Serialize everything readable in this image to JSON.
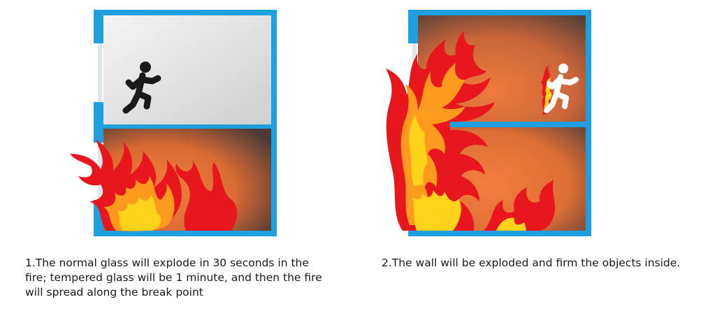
{
  "panels": [
    {
      "caption": "1.The normal glass will explode in 30 seconds in the fire; tempered glass will be 1 minute, and then the fire will spread along the break point"
    },
    {
      "caption": "2.The wall will be exploded and firm the objects inside."
    }
  ],
  "colors": {
    "frame": "#1e9fe0",
    "upper_room_calm": "#e6e6e6",
    "fire_room_center": "#f07a3a",
    "fire_room_edge": "#4a3a36",
    "flame_outer": "#e8161d",
    "flame_inner": "#ffd21c",
    "person_calm": "#1a1a1a",
    "person_fleeing": "#ffffff"
  },
  "icons": [
    "building-section-icon",
    "fire-icon",
    "running-person-icon"
  ]
}
